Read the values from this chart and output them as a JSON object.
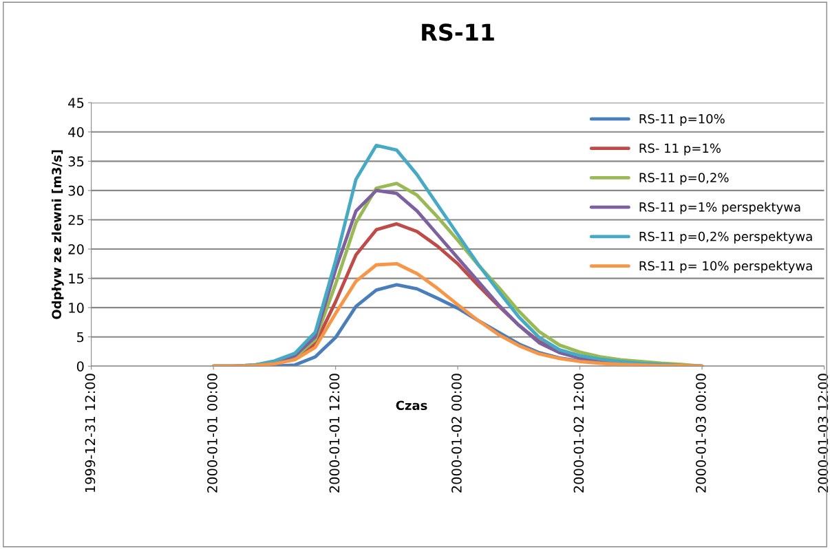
{
  "chart_data": {
    "type": "line",
    "title": "RS-11",
    "xlabel": "Czas",
    "ylabel": "Odpływ ze zlewni [m3/s]",
    "x": [
      "2000-01-01T00:00",
      "2000-01-01T02:00",
      "2000-01-01T04:00",
      "2000-01-01T06:00",
      "2000-01-01T08:00",
      "2000-01-01T10:00",
      "2000-01-01T12:00",
      "2000-01-01T14:00",
      "2000-01-01T16:00",
      "2000-01-01T18:00",
      "2000-01-01T20:00",
      "2000-01-01T22:00",
      "2000-01-02T00:00",
      "2000-01-02T02:00",
      "2000-01-02T04:00",
      "2000-01-02T06:00",
      "2000-01-02T08:00",
      "2000-01-02T10:00",
      "2000-01-02T12:00",
      "2000-01-02T14:00",
      "2000-01-02T16:00",
      "2000-01-02T18:00",
      "2000-01-02T20:00",
      "2000-01-02T22:00",
      "2000-01-03T00:00"
    ],
    "series": [
      {
        "name": "RS-11 p=10%",
        "color": "#4a7ebb",
        "values": [
          0,
          0,
          0,
          0,
          0.2,
          1.6,
          4.9,
          10.2,
          13.0,
          13.9,
          13.2,
          11.6,
          9.9,
          7.8,
          5.8,
          3.8,
          2.3,
          1.4,
          0.9,
          0.6,
          0.4,
          0.2,
          0.1,
          0.1,
          0
        ]
      },
      {
        "name": "RS- 11 p=1%",
        "color": "#be4b48",
        "values": [
          null,
          null,
          0.1,
          0.4,
          1.3,
          3.8,
          11,
          19,
          23.3,
          24.3,
          23,
          20.5,
          17.5,
          13.8,
          10.3,
          7,
          4.2,
          2.5,
          1.6,
          1.0,
          0.6,
          0.4,
          null,
          null,
          null
        ]
      },
      {
        "name": "RS-11 p=0,2%",
        "color": "#98b954",
        "values": [
          0,
          0,
          0.2,
          0.5,
          1.5,
          4.5,
          14,
          24.5,
          30.4,
          31.2,
          29.2,
          25.5,
          21.5,
          17.3,
          13.5,
          9.4,
          5.9,
          3.6,
          2.4,
          1.6,
          1.1,
          0.8,
          0.5,
          0.3,
          0
        ]
      },
      {
        "name": "RS-11 p=1% perspektywa",
        "color": "#7d60a0",
        "values": [
          0,
          0,
          0.2,
          0.6,
          1.8,
          5,
          16.5,
          26.5,
          30,
          29.5,
          26.5,
          22.5,
          18.5,
          14.5,
          10.5,
          7,
          4,
          2.3,
          1.4,
          0.9,
          0.5,
          0.3,
          0.2,
          0.1,
          0
        ]
      },
      {
        "name": "RS-11 p=0,2% perspektywa",
        "color": "#46aac5",
        "values": [
          0,
          0,
          0.2,
          0.9,
          2.2,
          5.8,
          18,
          31.9,
          37.7,
          36.9,
          32.7,
          27.6,
          22.5,
          17.4,
          12.8,
          8.4,
          4.9,
          2.8,
          1.8,
          1.2,
          0.8,
          0.5,
          0.3,
          0.1,
          0
        ]
      },
      {
        "name": "RS-11 p= 10% perspektywa",
        "color": "#f79646",
        "values": [
          0,
          0,
          0.1,
          0.4,
          1.1,
          3.2,
          9,
          14.5,
          17.3,
          17.5,
          15.8,
          13.3,
          10.5,
          7.8,
          5.4,
          3.5,
          2.1,
          1.3,
          0.8,
          0.5,
          0.3,
          0.2,
          0.1,
          0.1,
          0
        ]
      }
    ],
    "xlim": [
      "1999-12-31T12:00",
      "2000-01-03T12:00"
    ],
    "xticks": [
      {
        "value": "1999-12-31T12:00",
        "label": "1999-12-31 12:00"
      },
      {
        "value": "2000-01-01T00:00",
        "label": "2000-01-01 00:00"
      },
      {
        "value": "2000-01-01T12:00",
        "label": "2000-01-01 12:00"
      },
      {
        "value": "2000-01-02T00:00",
        "label": "2000-01-02 00:00"
      },
      {
        "value": "2000-01-02T12:00",
        "label": "2000-01-02 12:00"
      },
      {
        "value": "2000-01-03T00:00",
        "label": "2000-01-03 00:00"
      },
      {
        "value": "2000-01-03T12:00",
        "label": "2000-01-03 12:00"
      }
    ],
    "ylim": [
      0,
      45
    ],
    "yticks": [
      0,
      5,
      10,
      15,
      20,
      25,
      30,
      35,
      40,
      45
    ],
    "grid": "y",
    "legend": "top right",
    "marker": "none",
    "line_style": "solid"
  }
}
